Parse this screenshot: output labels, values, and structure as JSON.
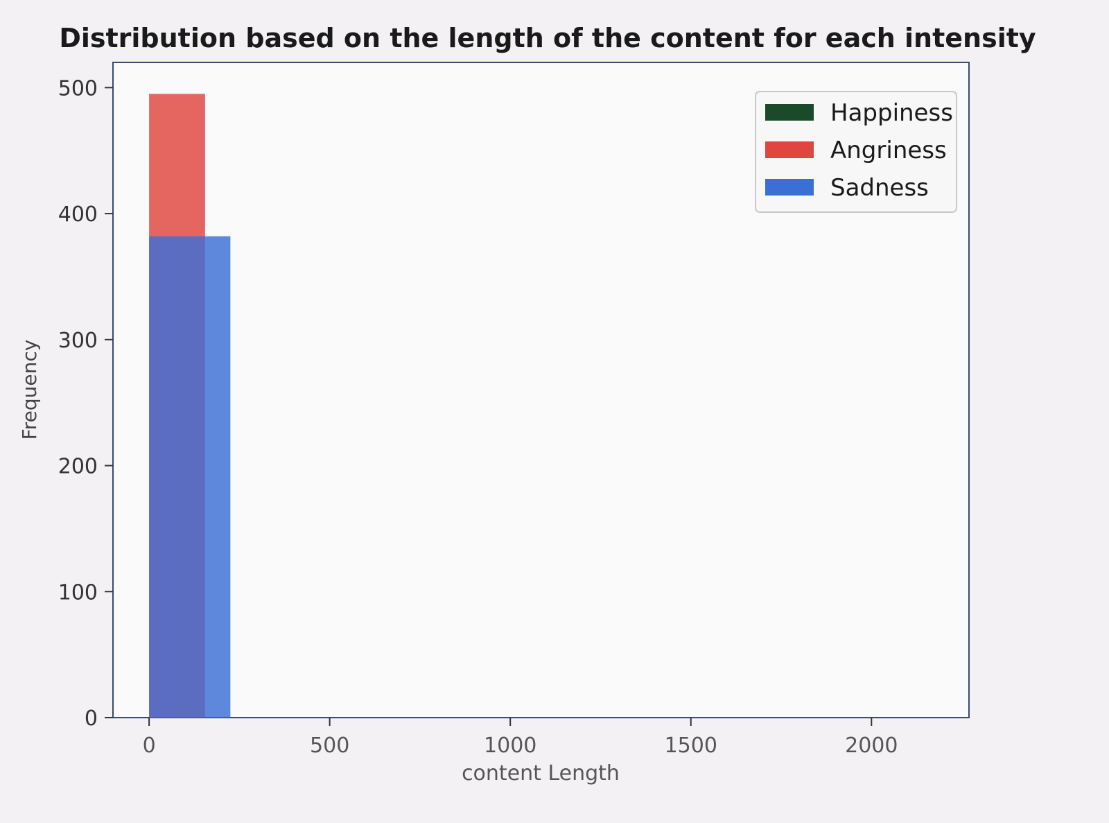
{
  "chart_data": {
    "type": "bar",
    "title": "Distribution based on the length of the content for each intensity",
    "xlabel": "content Length",
    "ylabel": "Frequency",
    "xlim": [
      -100,
      2270
    ],
    "ylim": [
      0,
      520
    ],
    "xticks": [
      0,
      500,
      1000,
      1500,
      2000
    ],
    "yticks": [
      0,
      100,
      200,
      300,
      400,
      500
    ],
    "grid": false,
    "legend_position": "top-right",
    "series": [
      {
        "name": "Happiness",
        "color": "#1b4a2a",
        "bars": []
      },
      {
        "name": "Angriness",
        "color": "#e0453f",
        "bars": [
          {
            "x0": 0,
            "x1": 155,
            "value": 495
          }
        ]
      },
      {
        "name": "Sadness",
        "color": "#3a6fd6",
        "bars": [
          {
            "x0": 0,
            "x1": 225,
            "value": 382
          }
        ]
      }
    ]
  }
}
